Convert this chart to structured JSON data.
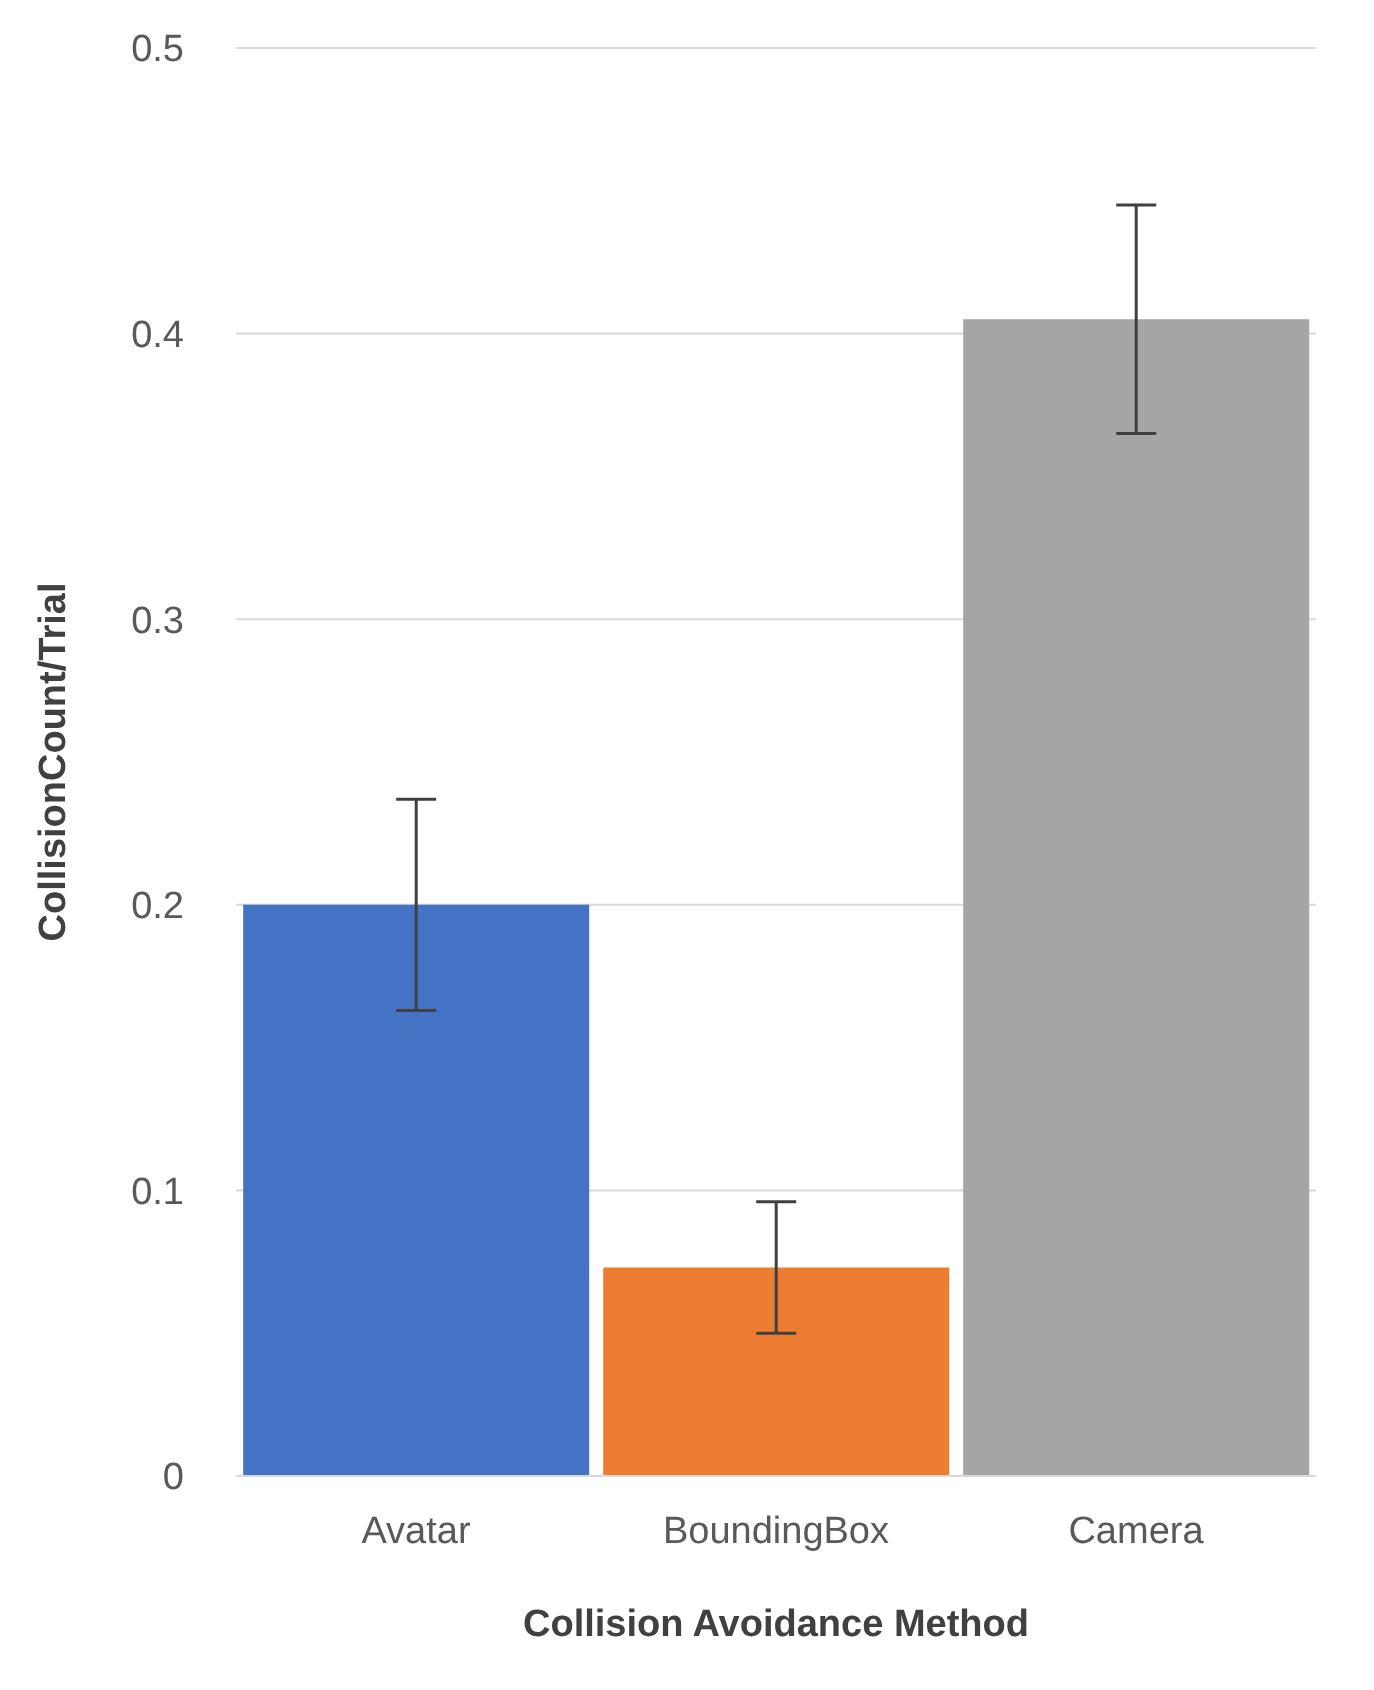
{
  "chart_data": {
    "type": "bar",
    "xlabel": "Collision Avoidance Method",
    "ylabel": "CollisionCount/Trial",
    "categories": [
      "Avatar",
      "BoundingBox",
      "Camera"
    ],
    "values": [
      0.2,
      0.073,
      0.405
    ],
    "colors": [
      "#4472c4",
      "#ed7d31",
      "#a5a5a5"
    ],
    "errors": [
      0.037,
      0.023,
      0.04
    ],
    "ylim": [
      0,
      0.5
    ],
    "yticks": [
      0,
      0.1,
      0.2,
      0.3,
      0.4,
      0.5
    ],
    "grid": "y"
  }
}
